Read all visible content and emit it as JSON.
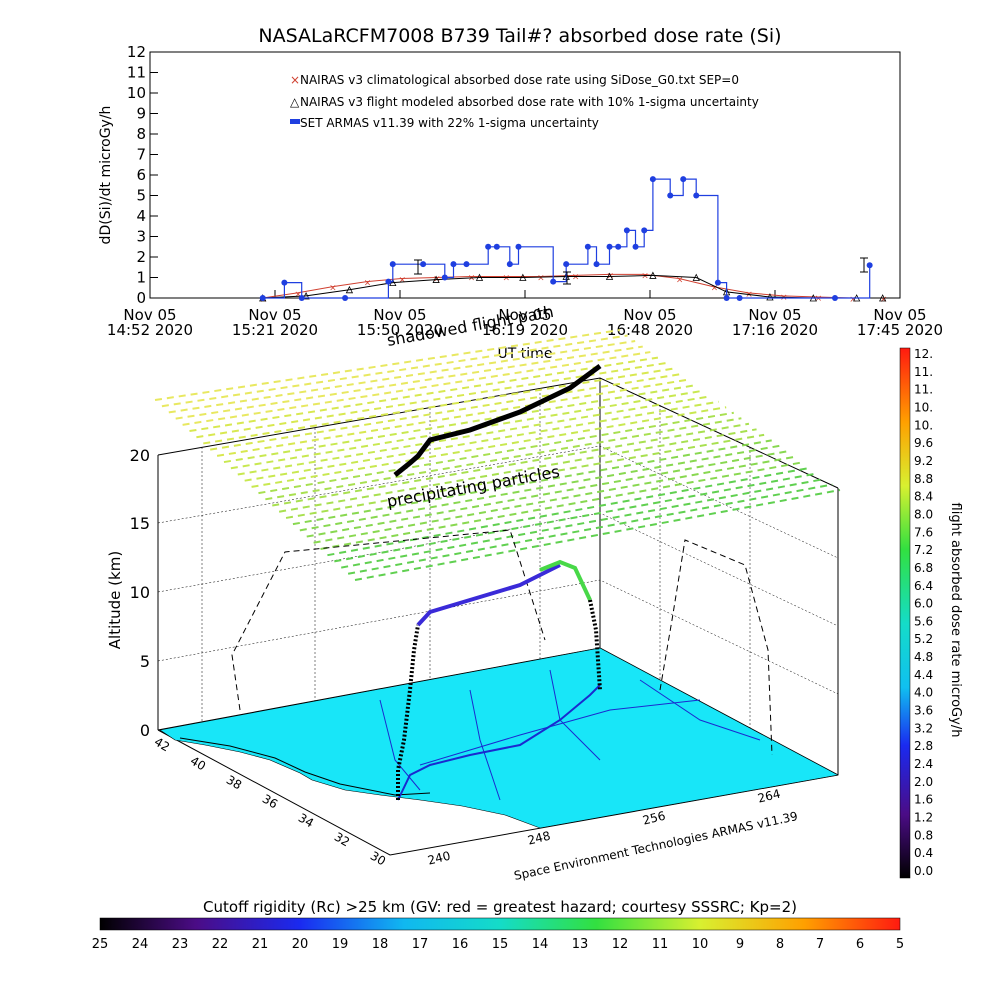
{
  "title": "NASALaRCFM7008  B739 Tail#? absorbed dose rate (Si)",
  "chart_data": [
    {
      "type": "line",
      "title": "NASALaRCFM7008  B739 Tail#? absorbed dose rate (Si)",
      "ylabel": "dD(Si)/dt microGy/h",
      "xlabel": "UT time",
      "ylim": [
        0,
        12
      ],
      "xlim": [
        "2020-11-05T14:52",
        "2020-11-05T17:45"
      ],
      "yticks": [
        "0",
        "1",
        "2",
        "3",
        "4",
        "5",
        "6",
        "7",
        "8",
        "9",
        "10",
        "11",
        "12"
      ],
      "xticks": [
        {
          "top": "Nov 05",
          "bottom": "14:52 2020"
        },
        {
          "top": "Nov 05",
          "bottom": "15:21 2020"
        },
        {
          "top": "Nov 05",
          "bottom": "15:50 2020"
        },
        {
          "top": "Nov 05",
          "bottom": "16:19 2020"
        },
        {
          "top": "Nov 05",
          "bottom": "16:48 2020"
        },
        {
          "top": "Nov 05",
          "bottom": "17:16 2020"
        },
        {
          "top": "Nov 05",
          "bottom": "17:45 2020"
        }
      ],
      "legend_placement": "top-left",
      "legend": [
        "NAIRAS v3 climatological absorbed dose rate using SiDose_G0.txt SEP=0",
        "NAIRAS v3 flight modeled absorbed dose rate with 10% 1-sigma uncertainty",
        "SET ARMAS v11.39 with 22% 1-sigma uncertainty"
      ],
      "series": [
        {
          "name": "NAIRAS v3 climatological absorbed dose rate using SiDose_G0.txt SEP=0",
          "color": "#d04030",
          "x": [
            "15:18",
            "15:26",
            "15:34",
            "15:42",
            "15:50",
            "15:58",
            "16:06",
            "16:14",
            "16:22",
            "16:30",
            "16:38",
            "16:46",
            "16:54",
            "17:02",
            "17:10",
            "17:18",
            "17:26",
            "17:34",
            "17:41"
          ],
          "values": [
            0.0,
            0.25,
            0.55,
            0.8,
            0.95,
            1.0,
            1.05,
            1.05,
            1.05,
            1.1,
            1.15,
            1.15,
            0.95,
            0.55,
            0.25,
            0.1,
            0.05,
            0.0,
            0.0
          ]
        },
        {
          "name": "NAIRAS v3 flight modeled absorbed dose rate with 10% 1-sigma uncertainty",
          "color": "#000000",
          "x": [
            "15:18",
            "15:28",
            "15:38",
            "15:48",
            "15:58",
            "16:08",
            "16:18",
            "16:28",
            "16:38",
            "16:48",
            "16:58",
            "17:05",
            "17:15",
            "17:25",
            "17:35",
            "17:41"
          ],
          "values": [
            0.0,
            0.1,
            0.4,
            0.75,
            0.9,
            1.0,
            1.0,
            1.05,
            1.05,
            1.1,
            1.0,
            0.3,
            0.05,
            0.0,
            0.0,
            0.0
          ]
        },
        {
          "name": "SET ARMAS v11.39 with 22% 1-sigma uncertainty",
          "color": "#1f3fe0",
          "x": [
            "15:18",
            "15:23",
            "15:27",
            "15:37",
            "15:47",
            "15:48",
            "15:55",
            "16:00",
            "16:02",
            "16:05",
            "16:10",
            "16:12",
            "16:15",
            "16:17",
            "16:25",
            "16:28",
            "16:33",
            "16:35",
            "16:38",
            "16:40",
            "16:42",
            "16:44",
            "16:46",
            "16:48",
            "16:52",
            "16:55",
            "16:58",
            "17:03",
            "17:05",
            "17:08",
            "17:30",
            "17:38"
          ],
          "values": [
            0.0,
            0.75,
            0.0,
            0.0,
            0.8,
            1.65,
            1.65,
            1.0,
            1.65,
            1.65,
            2.5,
            2.5,
            1.65,
            2.5,
            0.8,
            1.65,
            2.5,
            1.65,
            2.5,
            2.5,
            3.3,
            2.5,
            3.3,
            5.8,
            5.0,
            5.8,
            5.0,
            0.75,
            0.0,
            0.0,
            0.0,
            1.6
          ]
        }
      ]
    },
    {
      "type": "scatter",
      "zlabel": "Altitude (km)",
      "zticks": [
        "0",
        "5",
        "10",
        "15",
        "20"
      ],
      "lat_ticks": [
        "42",
        "40",
        "38",
        "36",
        "34",
        "32",
        "30"
      ],
      "lon_ticks": [
        "240",
        "248",
        "256",
        "264"
      ],
      "annotations": [
        "precipitating particles",
        "shadowed flight path"
      ],
      "credit": "Space Environment Technologies ARMAS v11.39",
      "colorbar": {
        "label": "flight absorbed dose rate microGy/h",
        "ticks": [
          "12.",
          "11.",
          "11.",
          "10.",
          "10.",
          "9.6",
          "9.2",
          "8.8",
          "8.4",
          "8.0",
          "7.6",
          "7.2",
          "6.8",
          "6.4",
          "6.0",
          "5.6",
          "5.2",
          "4.8",
          "4.4",
          "4.0",
          "3.6",
          "3.2",
          "2.8",
          "2.4",
          "2.0",
          "1.6",
          "1.2",
          "0.8",
          "0.4",
          "0.0"
        ]
      }
    },
    {
      "type": "heatmap",
      "title": "Cutoff rigidity (Rc) >25 km (GV: red = greatest hazard; courtesy SSSRC; Kp=2)",
      "ticks": [
        "25",
        "24",
        "23",
        "22",
        "21",
        "20",
        "19",
        "18",
        "17",
        "16",
        "15",
        "14",
        "13",
        "12",
        "11",
        "10",
        "9",
        "8",
        "7",
        "6",
        "5"
      ]
    }
  ]
}
